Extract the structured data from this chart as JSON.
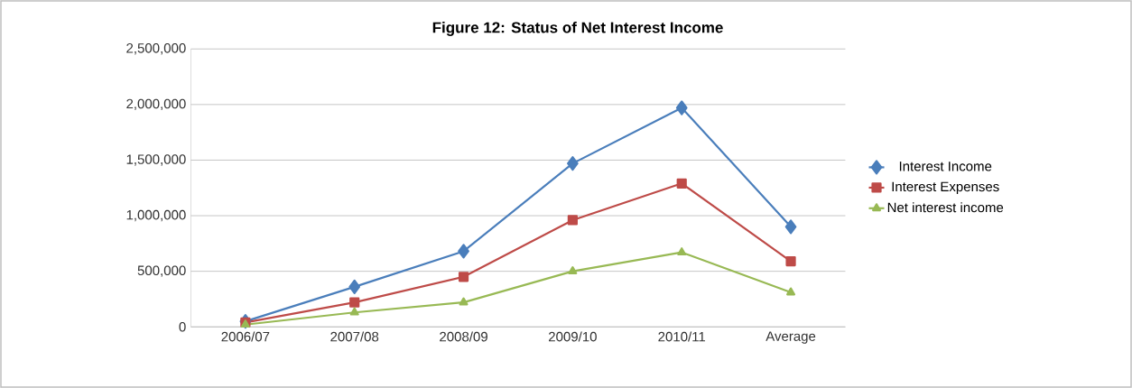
{
  "chart_data": {
    "type": "line",
    "title": "Figure 12: Status of Net Interest Income",
    "categories": [
      "2006/07",
      "2007/08",
      "2008/09",
      "2009/10",
      "2010/11",
      "Average"
    ],
    "series": [
      {
        "name": "Interest Income",
        "color": "#4a7ebb",
        "marker": "diamond",
        "values": [
          50000,
          360000,
          680000,
          1470000,
          1970000,
          900000
        ]
      },
      {
        "name": "Interest Expenses",
        "color": "#be4b48",
        "marker": "square",
        "values": [
          40000,
          220000,
          450000,
          960000,
          1290000,
          590000
        ]
      },
      {
        "name": "Net interest income",
        "color": "#98b954",
        "marker": "triangle",
        "values": [
          20000,
          130000,
          220000,
          500000,
          670000,
          310000
        ]
      }
    ],
    "ylim": [
      0,
      2500000
    ],
    "yticks": [
      {
        "value": 0,
        "label": "0"
      },
      {
        "value": 500000,
        "label": "500,000"
      },
      {
        "value": 1000000,
        "label": "1,000,000"
      },
      {
        "value": 1500000,
        "label": "1,500,000"
      },
      {
        "value": 2000000,
        "label": "2,000,000"
      },
      {
        "value": 2500000,
        "label": "2,500,000"
      }
    ],
    "grid": "y",
    "legend": "right",
    "line_style": "solid"
  }
}
